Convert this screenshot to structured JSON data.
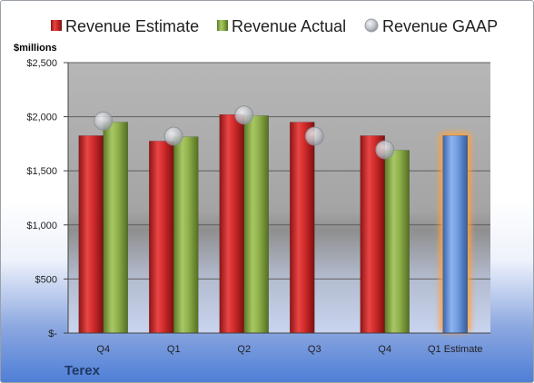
{
  "chart_data": {
    "type": "bar",
    "company": "Terex",
    "unit_label": "$millions",
    "categories": [
      "Q4",
      "Q1",
      "Q2",
      "Q3",
      "Q4",
      "Q1 Estimate"
    ],
    "series": [
      {
        "name": "Revenue Estimate",
        "kind": "bar",
        "color": "#e03a3a",
        "values": [
          1825,
          1775,
          2020,
          1950,
          1825,
          null
        ]
      },
      {
        "name": "Revenue Actual",
        "kind": "bar",
        "color": "#8fb04a",
        "values": [
          1950,
          1815,
          2010,
          null,
          1690,
          null
        ]
      },
      {
        "name": "Revenue GAAP",
        "kind": "marker",
        "color": "#b8bcc4",
        "values": [
          1960,
          1820,
          2015,
          1820,
          1695,
          null
        ]
      },
      {
        "name": "Q1 Estimate",
        "kind": "bar",
        "color": "#6f9be0",
        "values": [
          null,
          null,
          null,
          null,
          null,
          1825
        ]
      }
    ],
    "y_ticks": [
      0,
      500,
      1000,
      1500,
      2000,
      2500
    ],
    "y_tick_labels": [
      "$-",
      "$500",
      "$1,000",
      "$1,500",
      "$2,000",
      "$2,500"
    ],
    "ylim": [
      0,
      2500
    ],
    "grid": true,
    "legend": "top"
  }
}
